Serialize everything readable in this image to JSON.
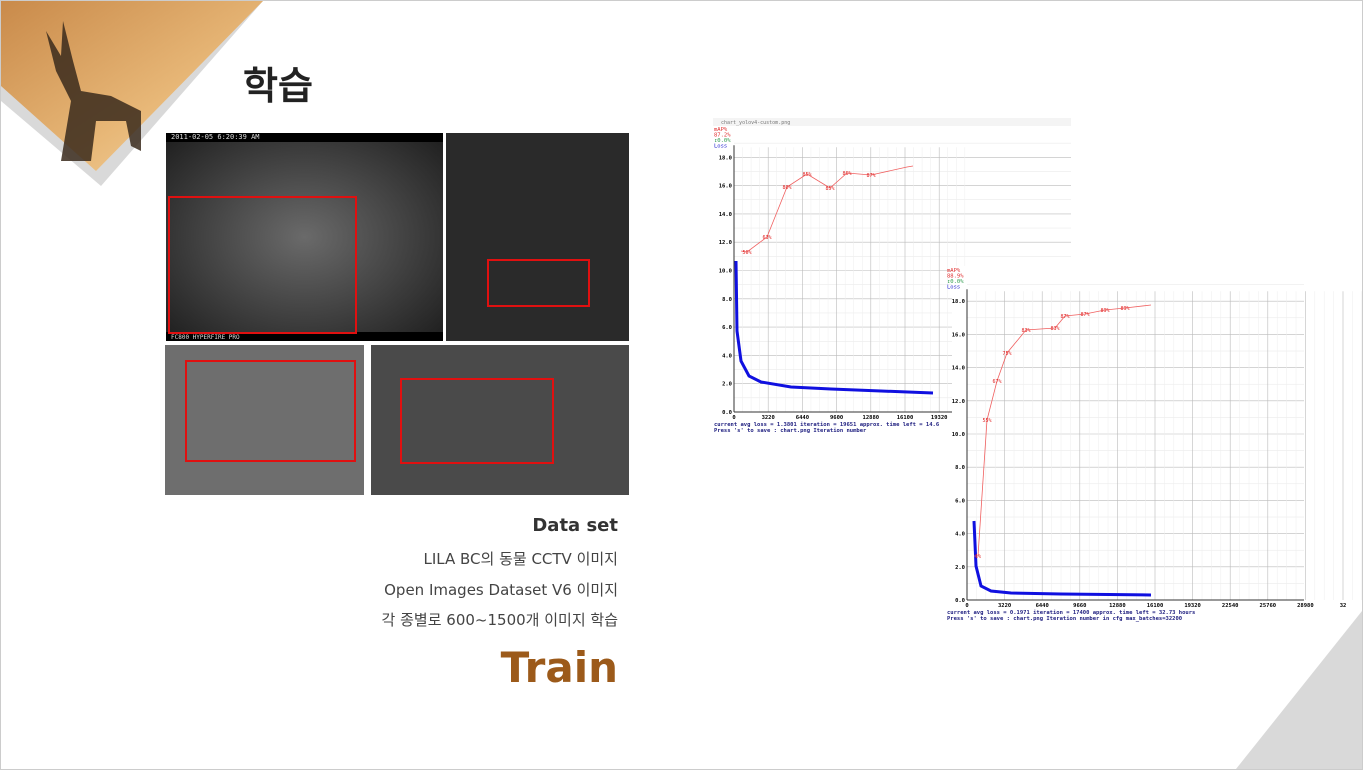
{
  "slide": {
    "title": "학습",
    "caption": {
      "heading": "Data set",
      "lines": [
        "LILA BC의 동물 CCTV 이미지",
        "Open Images Dataset V6 이미지",
        "각 종별로 600~1500개 이미지 학습"
      ],
      "label": "Train"
    },
    "photo_stamps": [
      "2011-02-05 6:20:39 AM",
      "FC800 HYPERFIRE PRO"
    ]
  },
  "chart1": {
    "window_title": "chart_yolov4-custom.png",
    "legend": [
      "mAP%",
      "87.2%",
      "↕0.0%",
      "Loss"
    ],
    "yticks": [
      "0.0",
      "2.0",
      "4.0",
      "6.0",
      "8.0",
      "10.0",
      "12.0",
      "14.0",
      "16.0",
      "18.0"
    ],
    "xticks": [
      "0",
      "3220",
      "6440",
      "9600",
      "12880",
      "16100",
      "19320"
    ],
    "map_labels": [
      "56%",
      "63%",
      "80%",
      "85%",
      "85%",
      "86%",
      "87%"
    ],
    "footer": [
      "current avg loss = 1.3801    iteration = 19651    approx. time left = 14.6",
      "Press 's' to save : chart.png                         Iteration number"
    ]
  },
  "chart2": {
    "legend": [
      "mAP%",
      "88.9%",
      "↕0.0%",
      "Loss"
    ],
    "yticks": [
      "0.0",
      "2.0",
      "4.0",
      "6.0",
      "8.0",
      "10.0",
      "12.0",
      "14.0",
      "16.0",
      "18.0"
    ],
    "xticks": [
      "0",
      "3220",
      "6440",
      "9660",
      "12880",
      "16100",
      "19320",
      "22540",
      "25760",
      "28980",
      "32"
    ],
    "map_labels": [
      "1%",
      "55%",
      "67%",
      "75%",
      "83%",
      "83%",
      "87%",
      "87%",
      "89%",
      "89%"
    ],
    "footer": [
      "current avg loss = 0.1971    iteration = 17400    approx. time left = 32.73 hours",
      "Press 's' to save : chart.png              Iteration number              in cfg max_batches=32200"
    ]
  }
}
